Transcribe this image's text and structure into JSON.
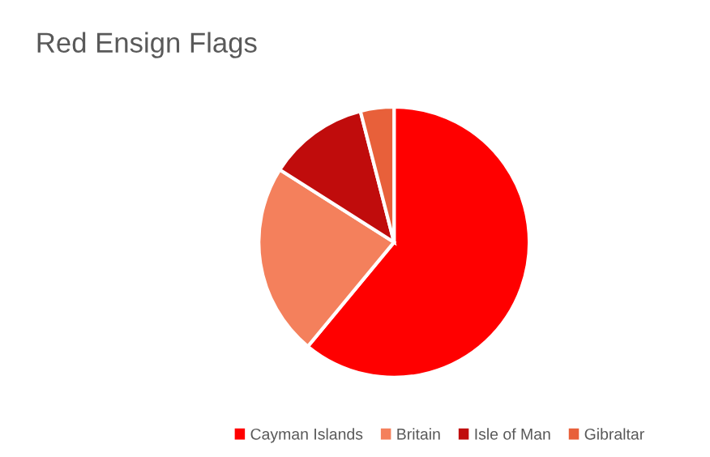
{
  "chart_data": {
    "type": "pie",
    "title": "Red Ensign Flags",
    "categories": [
      "Cayman Islands",
      "Britain",
      "Isle of Man",
      "Gibraltar"
    ],
    "values": [
      61,
      23,
      12,
      4
    ],
    "colors": [
      "#ff0000",
      "#f4805c",
      "#c00c0c",
      "#e8603a"
    ],
    "legend": "bottom"
  }
}
